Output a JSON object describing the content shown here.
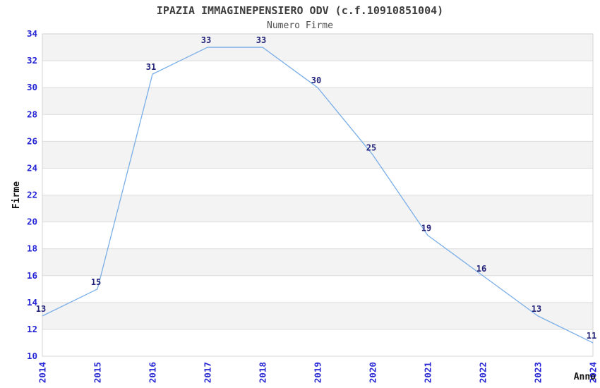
{
  "chart": {
    "title": "IPAZIA IMMAGINEPENSIERO ODV (c.f.10910851004)",
    "subtitle": "Numero Firme"
  },
  "chart_data": {
    "type": "line",
    "title": "IPAZIA IMMAGINEPENSIERO ODV (c.f.10910851004)",
    "subtitle": "Numero Firme",
    "x": [
      "2014",
      "2015",
      "2016",
      "2017",
      "2018",
      "2019",
      "2020",
      "2021",
      "2022",
      "2023",
      "2024"
    ],
    "values": [
      13,
      15,
      31,
      33,
      33,
      30,
      25,
      19,
      16,
      13,
      11
    ],
    "xlabel": "Anno",
    "ylabel": "Firme",
    "ylim": [
      10,
      34
    ],
    "ytick_step": 2,
    "yticks": [
      10,
      12,
      14,
      16,
      18,
      20,
      22,
      24,
      26,
      28,
      30,
      32,
      34
    ],
    "legend": "none",
    "grid": "horizontal-bands",
    "point_labels_shown": true,
    "colors": {
      "line": "#7aaee8",
      "tick_label": "#2525d5",
      "point_label": "#23237a",
      "band_gray": "#f3f3f3",
      "band_white": "#ffffff",
      "gridline": "#dcdcdc",
      "border": "#d3d3d3",
      "axis_label": "#141414",
      "title": "#3d3d3d",
      "subtitle": "#4f4f4f"
    }
  }
}
